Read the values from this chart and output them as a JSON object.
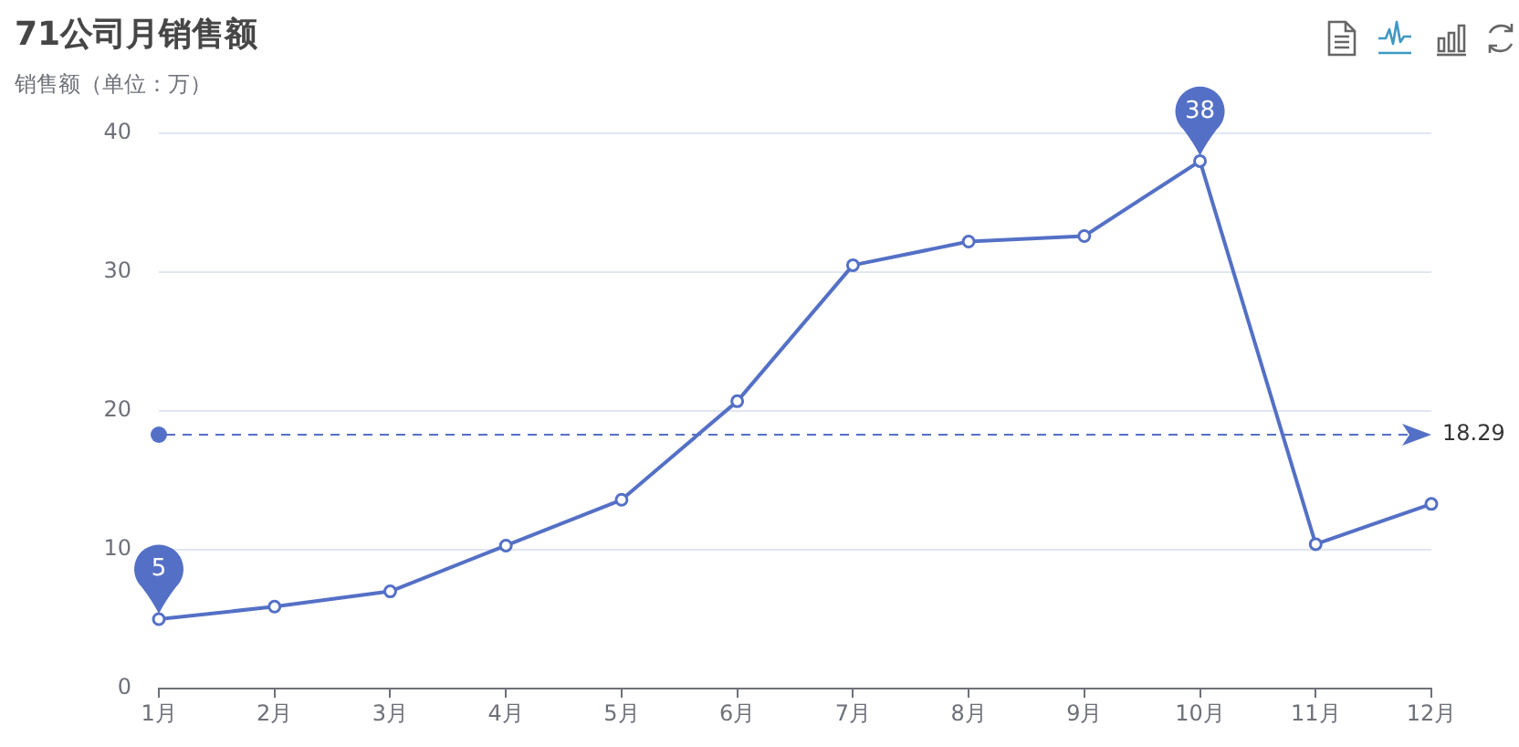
{
  "chart_data": {
    "type": "line",
    "title": "71公司月销售额",
    "ylabel": "销售额（单位：万）",
    "categories": [
      "1月",
      "2月",
      "3月",
      "4月",
      "5月",
      "6月",
      "7月",
      "8月",
      "9月",
      "10月",
      "11月",
      "12月"
    ],
    "series": [
      {
        "color": "#5470c6",
        "values": [
          5,
          5.9,
          7.0,
          10.3,
          13.6,
          20.7,
          30.5,
          32.2,
          32.6,
          38,
          10.4,
          13.3
        ]
      }
    ],
    "ylim": [
      0,
      40
    ],
    "yticks": [
      0,
      10,
      20,
      30,
      40
    ],
    "grid": "y",
    "marker": "circle",
    "line_style": "solid",
    "ref_lines": [
      {
        "axis": "y",
        "value": 18.29,
        "label": "18.29",
        "color": "#5470c6",
        "line_style": "dashed"
      }
    ],
    "annotations": [
      {
        "text": "5",
        "x": "1月",
        "y": 5
      },
      {
        "text": "38",
        "x": "10月",
        "y": 38
      }
    ]
  }
}
